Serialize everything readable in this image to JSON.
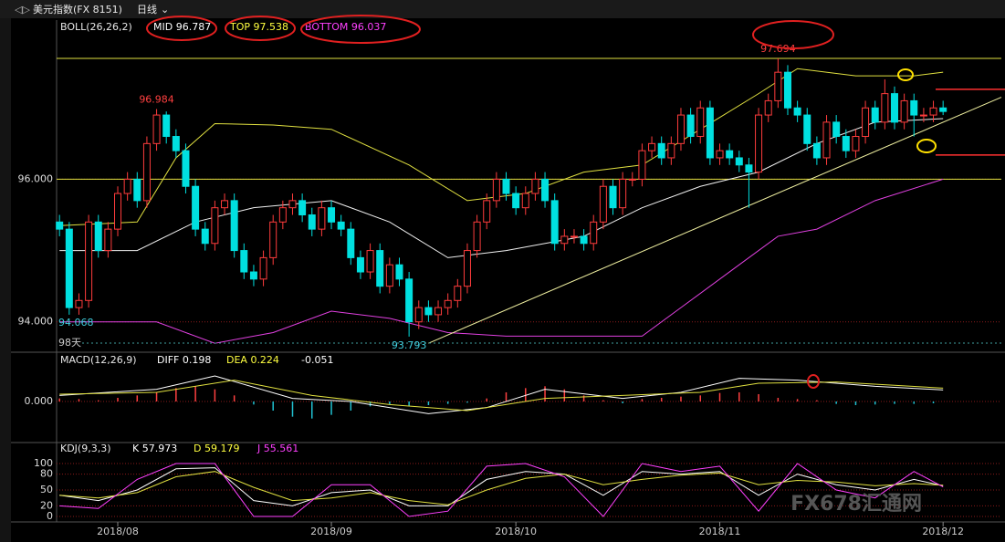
{
  "header": {
    "title": "美元指数(FX 8151)",
    "period": "日线"
  },
  "watermark": "FX678汇通网",
  "xlim": [
    -0.3,
    97
  ],
  "xticks": [
    {
      "value": 6,
      "label": "2018/08"
    },
    {
      "value": 28,
      "label": "2018/09"
    },
    {
      "value": 47,
      "label": "2018/10"
    },
    {
      "value": 68,
      "label": "2018/11"
    },
    {
      "value": 91,
      "label": "2018/12"
    }
  ],
  "chart_data": [
    {
      "type": "candlestick",
      "legend": [
        "BOLL(26,26,2)",
        "MID 96.787",
        "TOP 97.538",
        "BOTTOM 96.037"
      ],
      "legend_colors": [
        "#e8e8e8",
        "#ffffff",
        "#ffff40",
        "#ff40ff"
      ],
      "up_color": "#ff3c3c",
      "down_color": "#00e0e0",
      "open": [
        95.4,
        95.3,
        94.2,
        94.3,
        95.4,
        95.0,
        95.3,
        95.8,
        96.0,
        95.7,
        96.5,
        96.9,
        96.6,
        96.4,
        95.9,
        95.3,
        95.1,
        95.6,
        95.7,
        95.0,
        94.7,
        94.6,
        94.9,
        95.4,
        95.6,
        95.7,
        95.5,
        95.3,
        95.6,
        95.4,
        95.3,
        94.9,
        94.7,
        95.0,
        94.5,
        94.8,
        94.6,
        94.0,
        94.2,
        94.1,
        94.2,
        94.3,
        94.5,
        95.0,
        95.4,
        95.7,
        96.0,
        95.8,
        95.6,
        95.8,
        96.0,
        95.7,
        95.1,
        95.2,
        95.2,
        95.1,
        95.4,
        95.9,
        95.6,
        96.0,
        96.0,
        96.4,
        96.5,
        96.3,
        96.5,
        96.9,
        96.6,
        97.0,
        96.3,
        96.4,
        96.3,
        96.2,
        96.1,
        96.9,
        97.1,
        97.5,
        97.0,
        96.9,
        96.5,
        96.3,
        96.8,
        96.6,
        96.4,
        96.6,
        97.0,
        96.8,
        97.2,
        96.8,
        97.1,
        96.9,
        96.9,
        97.0
      ],
      "close": [
        95.3,
        94.2,
        94.3,
        95.4,
        95.0,
        95.3,
        95.8,
        96.0,
        95.7,
        96.5,
        96.9,
        96.6,
        96.4,
        95.9,
        95.3,
        95.1,
        95.6,
        95.7,
        95.0,
        94.7,
        94.6,
        94.9,
        95.4,
        95.6,
        95.7,
        95.5,
        95.3,
        95.6,
        95.4,
        95.3,
        94.9,
        94.7,
        95.0,
        94.5,
        94.8,
        94.6,
        94.0,
        94.2,
        94.1,
        94.2,
        94.3,
        94.5,
        95.0,
        95.4,
        95.7,
        96.0,
        95.8,
        95.6,
        95.8,
        96.0,
        95.7,
        95.1,
        95.2,
        95.2,
        95.1,
        95.4,
        95.9,
        95.6,
        96.0,
        96.0,
        96.4,
        96.5,
        96.3,
        96.5,
        96.9,
        96.6,
        97.0,
        96.3,
        96.4,
        96.3,
        96.2,
        96.1,
        96.9,
        97.1,
        97.5,
        97.0,
        96.9,
        96.5,
        96.3,
        96.8,
        96.6,
        96.4,
        96.6,
        97.0,
        96.8,
        97.2,
        96.8,
        97.1,
        96.9,
        96.9,
        97.0,
        96.95
      ],
      "high": [
        95.5,
        95.4,
        94.4,
        95.5,
        95.5,
        95.4,
        95.9,
        96.1,
        96.1,
        96.6,
        96.984,
        96.95,
        96.7,
        96.5,
        96.0,
        95.4,
        95.7,
        95.8,
        95.8,
        95.1,
        94.8,
        95.0,
        95.5,
        95.7,
        95.8,
        95.8,
        95.6,
        95.7,
        95.7,
        95.5,
        95.4,
        95.0,
        95.1,
        95.1,
        94.9,
        94.9,
        94.7,
        94.3,
        94.3,
        94.3,
        94.4,
        94.6,
        95.1,
        95.5,
        95.8,
        96.1,
        96.1,
        95.9,
        95.9,
        96.1,
        96.1,
        95.8,
        95.3,
        95.3,
        95.3,
        95.5,
        96.0,
        96.0,
        96.1,
        96.1,
        96.5,
        96.6,
        96.6,
        96.6,
        97.0,
        97.0,
        97.1,
        97.1,
        96.5,
        96.5,
        96.4,
        96.3,
        97.0,
        97.2,
        97.694,
        97.6,
        97.1,
        97.0,
        96.6,
        96.9,
        96.9,
        96.7,
        96.7,
        97.1,
        97.1,
        97.4,
        97.3,
        97.2,
        97.2,
        97.0,
        97.1,
        97.1
      ],
      "low": [
        95.2,
        94.1,
        94.1,
        94.2,
        94.9,
        94.9,
        95.2,
        95.7,
        95.6,
        95.6,
        96.4,
        96.5,
        96.3,
        95.8,
        95.2,
        95.0,
        95.0,
        95.5,
        94.9,
        94.6,
        94.5,
        94.5,
        94.8,
        95.3,
        95.5,
        95.4,
        95.2,
        95.2,
        95.3,
        95.2,
        94.8,
        94.6,
        94.6,
        94.4,
        94.4,
        94.5,
        93.793,
        93.9,
        94.0,
        94.0,
        94.1,
        94.2,
        94.4,
        94.9,
        95.3,
        95.6,
        95.7,
        95.5,
        95.5,
        95.7,
        95.6,
        95.0,
        95.0,
        95.1,
        95.0,
        95.0,
        95.3,
        95.5,
        95.5,
        95.9,
        95.9,
        96.3,
        96.2,
        96.2,
        96.4,
        96.5,
        96.5,
        96.2,
        96.2,
        96.2,
        96.1,
        95.6,
        96.0,
        96.8,
        97.0,
        96.9,
        96.8,
        96.4,
        96.2,
        96.2,
        96.5,
        96.3,
        96.3,
        96.5,
        96.7,
        96.7,
        96.7,
        96.7,
        96.6,
        96.8,
        96.8,
        96.9
      ],
      "annotations": [
        {
          "series": "high",
          "index": 10,
          "color": "#ff4040"
        },
        {
          "series": "high",
          "index": 74,
          "color": "#ff4040"
        },
        {
          "series": "low",
          "index": 36,
          "color": "#40d0e0"
        }
      ],
      "bands": [
        {
          "name": "TOP",
          "color": "#e0e040",
          "x": [
            0,
            8,
            12,
            16,
            22,
            28,
            36,
            42,
            48,
            54,
            60,
            66,
            72,
            76,
            82,
            88,
            91
          ],
          "values": [
            95.35,
            95.4,
            96.3,
            96.78,
            96.76,
            96.7,
            96.2,
            95.7,
            95.8,
            96.1,
            96.2,
            96.7,
            97.2,
            97.55,
            97.45,
            97.45,
            97.5
          ]
        },
        {
          "name": "MID",
          "color": "#f0f0f0",
          "x": [
            0,
            8,
            14,
            20,
            28,
            34,
            40,
            46,
            54,
            60,
            66,
            72,
            78,
            84,
            91
          ],
          "values": [
            95.0,
            95.0,
            95.4,
            95.6,
            95.7,
            95.4,
            94.9,
            95.0,
            95.2,
            95.6,
            95.9,
            96.1,
            96.5,
            96.8,
            96.85
          ]
        },
        {
          "name": "BOTTOM",
          "color": "#e040e0",
          "x": [
            0,
            10,
            16,
            22,
            28,
            34,
            40,
            46,
            54,
            60,
            64,
            70,
            74,
            78,
            84,
            91
          ],
          "values": [
            94.0,
            94.0,
            93.7,
            93.85,
            94.15,
            94.05,
            93.85,
            93.8,
            93.8,
            93.8,
            94.2,
            94.8,
            95.2,
            95.3,
            95.7,
            96.0
          ]
        }
      ],
      "levels": [
        97.694,
        96.0
      ],
      "level_color": "#e0e040",
      "marker_levels": [
        97.26,
        96.34
      ],
      "marker_color": "#ff3030",
      "trendline": {
        "x": [
          38,
          97
        ],
        "values": [
          93.7,
          97.15
        ],
        "color": "#f0f0a0"
      },
      "notes": [
        "94.068",
        "98天"
      ],
      "ylim": [
        93.6,
        97.95
      ],
      "yticks": [
        {
          "value": 96,
          "label": "96.000"
        },
        {
          "value": 94,
          "label": "94.000"
        }
      ]
    },
    {
      "type": "macd",
      "legend": [
        "MACD(12,26,9)",
        "DIFF 0.198",
        "DEA 0.224",
        "-0.051"
      ],
      "legend_colors": [
        "#e8e8e8",
        "#ffffff",
        "#ffff40",
        "#ffffff"
      ],
      "series": [
        {
          "name": "DIFF",
          "color": "#ffffff",
          "x": [
            0,
            10,
            16,
            24,
            30,
            38,
            44,
            50,
            58,
            64,
            70,
            76,
            84,
            91
          ],
          "values": [
            0.1,
            0.2,
            0.42,
            0.05,
            0.0,
            -0.2,
            -0.1,
            0.2,
            0.05,
            0.15,
            0.38,
            0.35,
            0.25,
            0.19
          ]
        },
        {
          "name": "DEA",
          "color": "#e0e040",
          "x": [
            0,
            10,
            18,
            26,
            34,
            42,
            50,
            58,
            66,
            72,
            80,
            91
          ],
          "values": [
            0.12,
            0.15,
            0.35,
            0.1,
            -0.05,
            -0.15,
            0.05,
            0.1,
            0.15,
            0.3,
            0.32,
            0.22
          ]
        }
      ],
      "hist": {
        "up_color": "#ff4040",
        "down_color": "#20c0d0",
        "x": [
          0,
          2,
          4,
          6,
          8,
          10,
          12,
          14,
          16,
          18,
          20,
          22,
          24,
          26,
          28,
          30,
          32,
          34,
          36,
          38,
          40,
          42,
          44,
          46,
          48,
          50,
          52,
          54,
          56,
          58,
          60,
          62,
          64,
          66,
          68,
          70,
          72,
          74,
          76,
          78,
          80,
          82,
          84,
          86,
          88,
          90
        ],
        "values": [
          0.05,
          0.04,
          0.02,
          0.06,
          0.1,
          0.15,
          0.22,
          0.25,
          0.2,
          0.1,
          -0.05,
          -0.15,
          -0.25,
          -0.28,
          -0.22,
          -0.15,
          -0.08,
          -0.05,
          -0.08,
          -0.06,
          -0.04,
          -0.02,
          0.05,
          0.15,
          0.22,
          0.25,
          0.2,
          0.1,
          0.02,
          -0.03,
          0.04,
          0.06,
          0.08,
          0.1,
          0.14,
          0.15,
          0.12,
          0.06,
          0.04,
          0.02,
          -0.04,
          -0.06,
          -0.05,
          -0.04,
          -0.04,
          -0.03
        ]
      },
      "ylim": [
        -0.6,
        0.6
      ],
      "yticks": [
        {
          "value": 0,
          "label": "0.000"
        }
      ]
    },
    {
      "type": "kdj",
      "legend": [
        "KDJ(9,3,3)",
        "K 57.973",
        "D 59.179",
        "J 55.561"
      ],
      "legend_colors": [
        "#e8e8e8",
        "#ffffff",
        "#ffff40",
        "#ff40ff"
      ],
      "series": [
        {
          "name": "K",
          "color": "#ffffff",
          "x": [
            0,
            4,
            8,
            12,
            16,
            20,
            24,
            28,
            32,
            36,
            40,
            44,
            48,
            52,
            56,
            60,
            64,
            68,
            72,
            76,
            80,
            84,
            88,
            91
          ],
          "values": [
            40,
            30,
            50,
            90,
            92,
            30,
            20,
            45,
            50,
            20,
            20,
            70,
            85,
            80,
            40,
            85,
            80,
            85,
            40,
            80,
            60,
            50,
            70,
            58
          ]
        },
        {
          "name": "D",
          "color": "#e0e040",
          "x": [
            0,
            4,
            8,
            12,
            16,
            20,
            24,
            28,
            32,
            36,
            40,
            44,
            48,
            52,
            56,
            60,
            64,
            68,
            72,
            76,
            80,
            84,
            88,
            91
          ],
          "values": [
            40,
            35,
            45,
            75,
            85,
            55,
            30,
            35,
            45,
            30,
            22,
            50,
            72,
            80,
            60,
            70,
            78,
            82,
            60,
            68,
            65,
            58,
            62,
            59
          ]
        },
        {
          "name": "J",
          "color": "#ff40ff",
          "x": [
            0,
            4,
            8,
            12,
            16,
            20,
            24,
            28,
            32,
            36,
            40,
            44,
            48,
            52,
            56,
            60,
            64,
            68,
            72,
            76,
            80,
            84,
            88,
            91
          ],
          "values": [
            20,
            15,
            70,
            100,
            100,
            0,
            0,
            60,
            60,
            0,
            10,
            95,
            100,
            75,
            0,
            100,
            85,
            95,
            10,
            100,
            50,
            35,
            85,
            56
          ]
        }
      ],
      "ylim": [
        0,
        100
      ],
      "yticks": [
        100,
        80,
        50,
        20,
        0
      ]
    }
  ]
}
